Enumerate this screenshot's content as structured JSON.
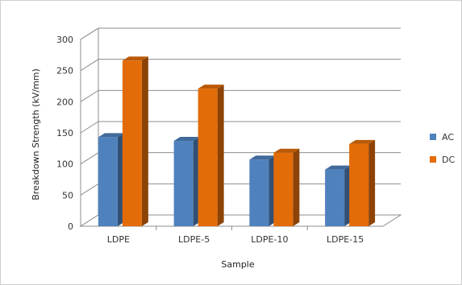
{
  "chart_data": {
    "type": "bar",
    "title": "",
    "xlabel": "Sample",
    "ylabel": "Breakdown Strength (kV/mm)",
    "categories": [
      "LDPE",
      "LDPE-5",
      "LDPE-10",
      "LDPE-15"
    ],
    "series": [
      {
        "name": "AC",
        "values": [
          143,
          137,
          107,
          91
        ],
        "color": "#4F81BD"
      },
      {
        "name": "DC",
        "values": [
          266,
          221,
          118,
          132
        ],
        "color": "#E36C09"
      }
    ],
    "ylim": [
      0,
      300
    ],
    "yticks": [
      "0",
      "50",
      "100",
      "150",
      "200",
      "250",
      "300"
    ],
    "grid": true,
    "legend_position": "right",
    "style": "3d-column"
  }
}
